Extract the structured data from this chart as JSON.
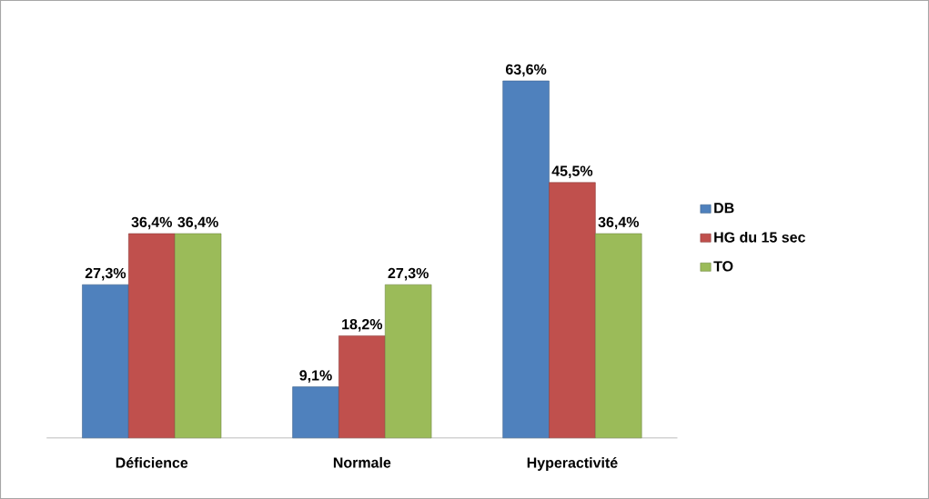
{
  "chart_data": {
    "type": "bar",
    "categories": [
      "Déficience",
      "Normale",
      "Hyperactivité"
    ],
    "series": [
      {
        "name": "DB",
        "color": "#4f81bd",
        "values": [
          27.3,
          9.1,
          63.6
        ],
        "value_labels": [
          "27,3%",
          "9,1%",
          "63,6%"
        ]
      },
      {
        "name": "HG du 15 sec",
        "color": "#c0504d",
        "values": [
          36.4,
          18.2,
          45.5
        ],
        "value_labels": [
          "36,4%",
          "18,2%",
          "45,5%"
        ]
      },
      {
        "name": "TO",
        "color": "#9bbb59",
        "values": [
          36.4,
          27.3,
          36.4
        ],
        "value_labels": [
          "36,4%",
          "27,3%",
          "36,4%"
        ]
      }
    ],
    "legend": "right"
  }
}
